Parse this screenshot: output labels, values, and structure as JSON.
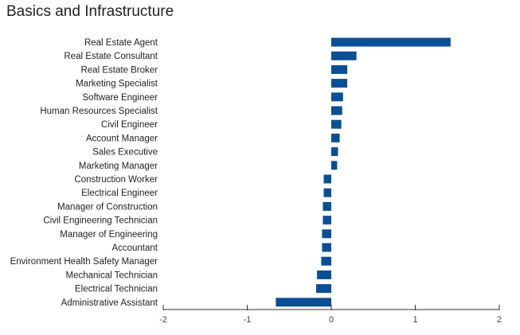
{
  "chart_data": {
    "type": "bar",
    "orientation": "horizontal",
    "title": "Basics and Infrastructure",
    "categories": [
      "Real Estate Agent",
      "Real Estate Consultant",
      "Real Estate Broker",
      "Marketing Specialist",
      "Software Engineer",
      "Human Resources Specialist",
      "Civil Engineer",
      "Account Manager",
      "Sales Executive",
      "Marketing Manager",
      "Construction Worker",
      "Electrical Engineer",
      "Manager of Construction",
      "Civil Engineering Technician",
      "Manager of Engineering",
      "Accountant",
      "Environment Health Safety Manager",
      "Mechanical Technician",
      "Electrical Technician",
      "Administrative Assistant"
    ],
    "values": [
      1.42,
      0.3,
      0.19,
      0.19,
      0.14,
      0.13,
      0.12,
      0.1,
      0.08,
      0.07,
      -0.09,
      -0.09,
      -0.1,
      -0.1,
      -0.11,
      -0.11,
      -0.12,
      -0.17,
      -0.18,
      -0.66
    ],
    "xlim": [
      -2,
      2
    ],
    "xticks": [
      "-2",
      "-1",
      "0",
      "1",
      "2"
    ],
    "bar_color": "#0a4f96",
    "grid": false
  }
}
